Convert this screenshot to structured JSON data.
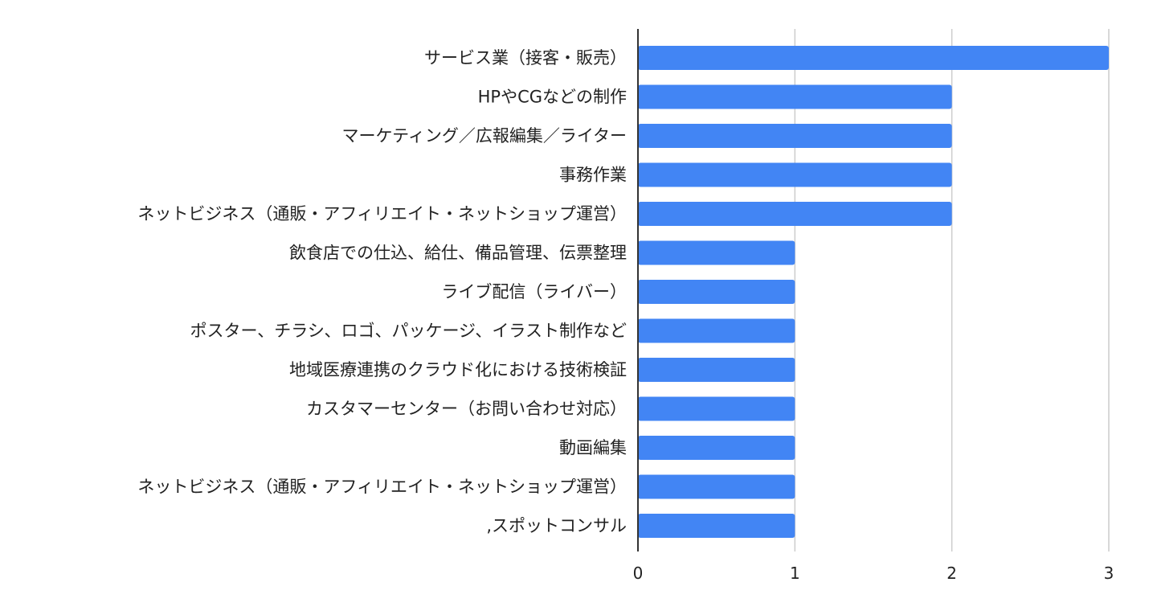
{
  "chart_data": {
    "type": "bar",
    "orientation": "horizontal",
    "title": "",
    "xlabel": "",
    "ylabel": "",
    "categories": [
      "サービス業（接客・販売）",
      "HPやCGなどの制作",
      "マーケティング／広報編集／ライター",
      "事務作業",
      "ネットビジネス（通販・アフィリエイト・ネットショップ運営）",
      "飲食店での仕込、給仕、備品管理、伝票整理",
      "ライブ配信（ライバー）",
      "ポスター、チラシ、ロゴ、パッケージ、イラスト制作など",
      "地域医療連携のクラウド化における技術検証",
      "カスタマーセンター（お問い合わせ対応）",
      "動画編集",
      "ネットビジネス（通販・アフィリエイト・ネットショップ運営）",
      ",スポットコンサル"
    ],
    "values": [
      3,
      2,
      2,
      2,
      2,
      1,
      1,
      1,
      1,
      1,
      1,
      1,
      1
    ],
    "xlim": [
      0,
      3
    ],
    "xticks": [
      "0",
      "1",
      "2",
      "3"
    ],
    "grid": "vertical",
    "legend": "none",
    "bar_color": "#4285f4",
    "grid_color": "#cccccc",
    "axis_color": "#333333"
  }
}
